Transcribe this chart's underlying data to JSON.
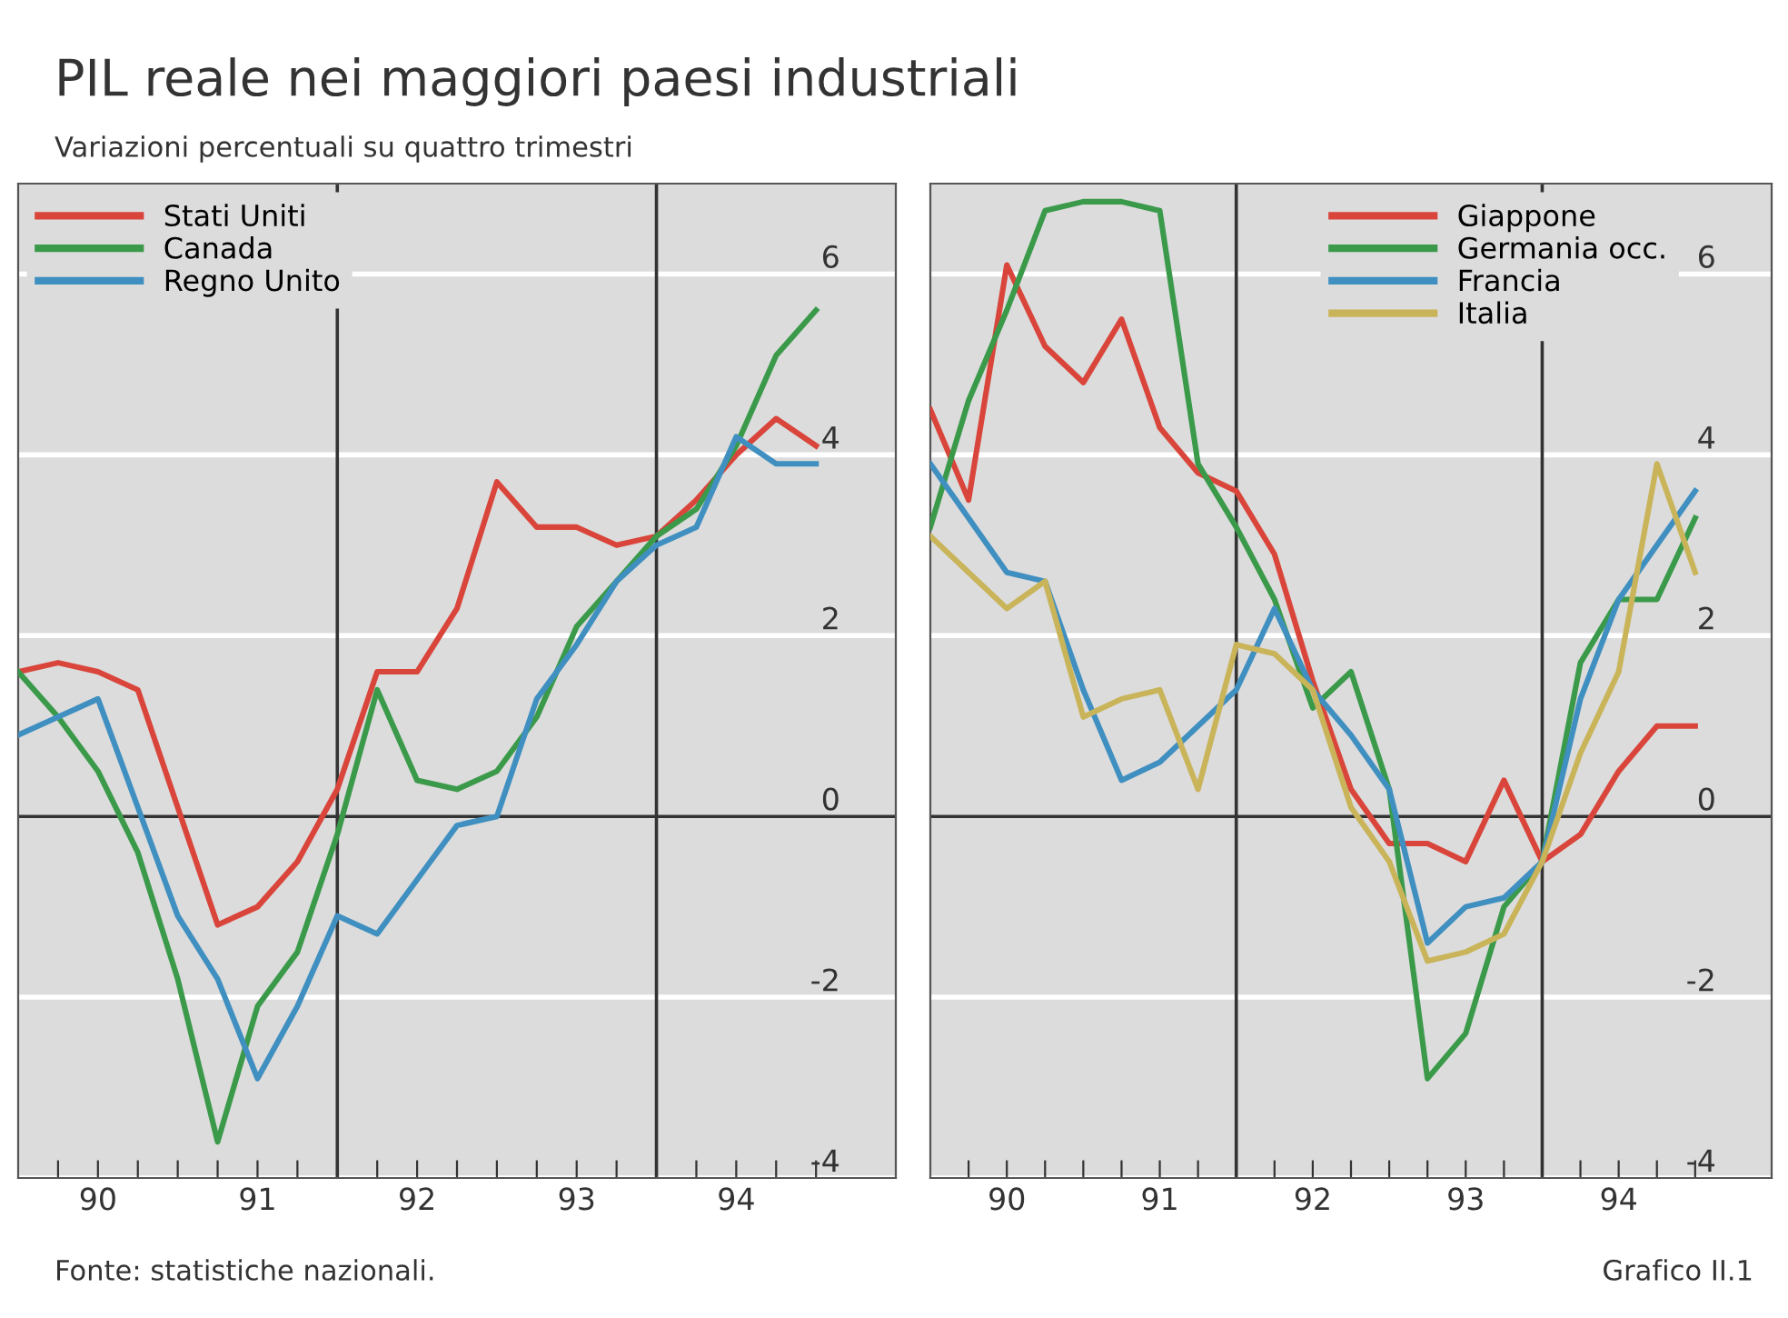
{
  "chart_data": [
    {
      "type": "line",
      "title": "PIL reale nei maggiori paesi industriali",
      "subtitle": "Variazioni percentuali su quattro trimestri",
      "x": [
        89.5,
        89.75,
        90.0,
        90.25,
        90.5,
        90.75,
        91.0,
        91.25,
        91.5,
        91.75,
        92.0,
        92.25,
        92.5,
        92.75,
        93.0,
        93.25,
        93.5,
        93.75,
        94.0,
        94.25,
        94.5
      ],
      "series": [
        {
          "name": "Stati Uniti",
          "color": "#d9453a",
          "values": [
            1.6,
            1.7,
            1.6,
            1.4,
            0.1,
            -1.2,
            -1.0,
            -0.5,
            0.3,
            1.6,
            1.6,
            2.3,
            3.7,
            3.2,
            3.2,
            3.0,
            3.1,
            3.5,
            4.0,
            4.4,
            4.1
          ]
        },
        {
          "name": "Canada",
          "color": "#3a9a4a",
          "values": [
            1.6,
            1.1,
            0.5,
            -0.4,
            -1.8,
            -3.6,
            -2.1,
            -1.5,
            -0.2,
            1.4,
            0.4,
            0.3,
            0.5,
            1.1,
            2.1,
            2.6,
            3.1,
            3.4,
            4.1,
            5.1,
            5.6
          ]
        },
        {
          "name": "Regno Unito",
          "color": "#3f8fc0",
          "values": [
            0.9,
            1.1,
            1.3,
            0.1,
            -1.1,
            -1.8,
            -2.9,
            -2.1,
            -1.1,
            -1.3,
            -0.7,
            -0.1,
            0.0,
            1.3,
            1.9,
            2.6,
            3.0,
            3.2,
            4.2,
            3.9,
            3.9
          ]
        }
      ],
      "xlim": [
        89.5,
        95.0
      ],
      "ylim": [
        -4,
        7
      ],
      "xticks": [
        {
          "value": 89.75,
          "label": null
        },
        90,
        {
          "value": 90.25,
          "label": null
        },
        {
          "value": 90.5,
          "label": null
        },
        {
          "value": 90.75,
          "label": null
        },
        91,
        {
          "value": 91.25,
          "label": null
        },
        {
          "value": 91.5,
          "label": null
        },
        {
          "value": 91.75,
          "label": null
        },
        92,
        {
          "value": 92.25,
          "label": null
        },
        {
          "value": 92.5,
          "label": null
        },
        {
          "value": 92.75,
          "label": null
        },
        93,
        {
          "value": 93.25,
          "label": null
        },
        {
          "value": 93.5,
          "label": null
        },
        {
          "value": 93.75,
          "label": null
        },
        94,
        {
          "value": 94.25,
          "label": null
        },
        {
          "value": 94.5,
          "label": null
        }
      ],
      "yticks": [
        -4,
        -2,
        0,
        2,
        4,
        6
      ],
      "ref_lines": [
        {
          "axis": "x",
          "value": 91.5,
          "color": "#333333"
        },
        {
          "axis": "x",
          "value": 93.5,
          "color": "#333333"
        }
      ],
      "grid": "y",
      "legend": "top left",
      "line_style": "solid",
      "marker": "none",
      "annotations": [
        "Fonte: statistiche nazionali."
      ]
    },
    {
      "type": "line",
      "x": [
        89.5,
        89.75,
        90.0,
        90.25,
        90.5,
        90.75,
        91.0,
        91.25,
        91.5,
        91.75,
        92.0,
        92.25,
        92.5,
        92.75,
        93.0,
        93.25,
        93.5,
        93.75,
        94.0,
        94.25,
        94.5
      ],
      "series": [
        {
          "name": "Giappone",
          "color": "#d9453a",
          "values": [
            4.5,
            3.5,
            6.1,
            5.2,
            4.8,
            5.5,
            4.3,
            3.8,
            3.6,
            2.9,
            1.5,
            0.3,
            -0.3,
            -0.3,
            -0.5,
            0.4,
            -0.5,
            -0.2,
            0.5,
            1.0,
            1.0
          ]
        },
        {
          "name": "Germania occ.",
          "color": "#3a9a4a",
          "values": [
            3.2,
            4.6,
            5.6,
            6.7,
            6.8,
            6.8,
            6.7,
            3.9,
            3.2,
            2.4,
            1.2,
            1.6,
            0.3,
            -2.9,
            -2.4,
            -1.0,
            -0.5,
            1.7,
            2.4,
            2.4,
            3.3
          ]
        },
        {
          "name": "Francia",
          "color": "#3f8fc0",
          "values": [
            3.9,
            3.3,
            2.7,
            2.6,
            1.4,
            0.4,
            0.6,
            1.0,
            1.4,
            2.3,
            1.4,
            0.9,
            0.3,
            -1.4,
            -1.0,
            -0.9,
            -0.5,
            1.3,
            2.4,
            3.0,
            3.6
          ]
        },
        {
          "name": "Italia",
          "color": "#c9b45a",
          "values": [
            3.1,
            2.7,
            2.3,
            2.6,
            1.1,
            1.3,
            1.4,
            0.3,
            1.9,
            1.8,
            1.4,
            0.1,
            -0.5,
            -1.6,
            -1.5,
            -1.3,
            -0.5,
            0.7,
            1.6,
            3.9,
            2.7
          ]
        }
      ],
      "xlim": [
        89.5,
        95.0
      ],
      "ylim": [
        -4,
        7
      ],
      "xticks": [
        {
          "value": 89.75,
          "label": null
        },
        90,
        {
          "value": 90.25,
          "label": null
        },
        {
          "value": 90.5,
          "label": null
        },
        {
          "value": 90.75,
          "label": null
        },
        91,
        {
          "value": 91.25,
          "label": null
        },
        {
          "value": 91.5,
          "label": null
        },
        {
          "value": 91.75,
          "label": null
        },
        92,
        {
          "value": 92.25,
          "label": null
        },
        {
          "value": 92.5,
          "label": null
        },
        {
          "value": 92.75,
          "label": null
        },
        93,
        {
          "value": 93.25,
          "label": null
        },
        {
          "value": 93.5,
          "label": null
        },
        {
          "value": 93.75,
          "label": null
        },
        94,
        {
          "value": 94.25,
          "label": null
        },
        {
          "value": 94.5,
          "label": null
        }
      ],
      "yticks": [
        -4,
        -2,
        0,
        2,
        4,
        6
      ],
      "ref_lines": [
        {
          "axis": "x",
          "value": 91.5,
          "color": "#333333"
        },
        {
          "axis": "x",
          "value": 93.5,
          "color": "#333333"
        }
      ],
      "grid": "y",
      "legend": "top right",
      "line_style": "solid",
      "marker": "none",
      "annotations": [
        "Grafico II.1"
      ]
    }
  ]
}
